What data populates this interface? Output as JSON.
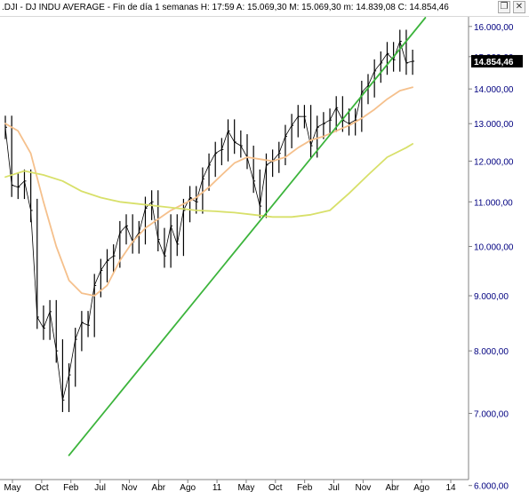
{
  "header": {
    "title": ".DJI - DJ INDU AVERAGE - Fin de día 1 semanas  H: 17:59  A: 15.069,30  M: 15.069,30  m: 14.839,08  C: 14.854,46",
    "restore_icon": "restore-window-icon",
    "close_icon": "close-icon"
  },
  "chart_data": {
    "type": "line",
    "price_style": "bar",
    "x_ticks": [
      "May",
      "Oct",
      "Feb",
      "Jul",
      "Nov",
      "Abr",
      "Ago",
      "11",
      "May",
      "Oct",
      "Feb",
      "Jul",
      "Nov",
      "Abr",
      "Ago",
      "14"
    ],
    "y_scale": "log",
    "y_ticks": [
      "6.000,00",
      "7.000,00",
      "8.000,00",
      "9.000,00",
      "10.000,00",
      "11.000,00",
      "12.000,00",
      "13.000,00",
      "14.000,00",
      "15.000,00",
      "16.000,00"
    ],
    "y_tick_values": [
      6000,
      7000,
      8000,
      9000,
      10000,
      11000,
      12000,
      13000,
      14000,
      15000,
      16000
    ],
    "ylim": [
      6100,
      16300
    ],
    "last_value_label": "14.854,46",
    "last_value": 14854.46,
    "period_range": [
      "2008-05",
      "2013-09"
    ],
    "series": [
      {
        "kind": "price",
        "color": "#000000",
        "points": [
          [
            "2008-05",
            12900
          ],
          [
            "2008-06",
            11400
          ],
          [
            "2008-07",
            11350
          ],
          [
            "2008-08",
            11500
          ],
          [
            "2008-09",
            10800
          ],
          [
            "2008-10",
            8600
          ],
          [
            "2008-11",
            8400
          ],
          [
            "2008-12",
            8700
          ],
          [
            "2009-01",
            8000
          ],
          [
            "2009-02",
            7200
          ],
          [
            "2009-03",
            7600
          ],
          [
            "2009-04",
            8200
          ],
          [
            "2009-05",
            8500
          ],
          [
            "2009-06",
            8450
          ],
          [
            "2009-07",
            9200
          ],
          [
            "2009-08",
            9500
          ],
          [
            "2009-09",
            9700
          ],
          [
            "2009-10",
            9800
          ],
          [
            "2009-11",
            10300
          ],
          [
            "2009-12",
            10450
          ],
          [
            "2010-01",
            10100
          ],
          [
            "2010-02",
            10300
          ],
          [
            "2010-03",
            10850
          ],
          [
            "2010-04",
            11000
          ],
          [
            "2010-05",
            10150
          ],
          [
            "2010-06",
            9800
          ],
          [
            "2010-07",
            10450
          ],
          [
            "2010-08",
            10050
          ],
          [
            "2010-09",
            10800
          ],
          [
            "2010-10",
            11100
          ],
          [
            "2010-11",
            11000
          ],
          [
            "2010-12",
            11550
          ],
          [
            "2011-01",
            11900
          ],
          [
            "2011-02",
            12200
          ],
          [
            "2011-03",
            12300
          ],
          [
            "2011-04",
            12800
          ],
          [
            "2011-05",
            12500
          ],
          [
            "2011-06",
            12400
          ],
          [
            "2011-07",
            12100
          ],
          [
            "2011-08",
            11500
          ],
          [
            "2011-09",
            10900
          ],
          [
            "2011-10",
            11900
          ],
          [
            "2011-11",
            12000
          ],
          [
            "2011-12",
            12200
          ],
          [
            "2012-01",
            12650
          ],
          [
            "2012-02",
            12950
          ],
          [
            "2012-03",
            13200
          ],
          [
            "2012-04",
            13200
          ],
          [
            "2012-05",
            12400
          ],
          [
            "2012-06",
            12900
          ],
          [
            "2012-07",
            13000
          ],
          [
            "2012-08",
            13100
          ],
          [
            "2012-09",
            13450
          ],
          [
            "2012-10",
            13100
          ],
          [
            "2012-11",
            13000
          ],
          [
            "2012-12",
            13100
          ],
          [
            "2013-01",
            13900
          ],
          [
            "2013-02",
            14100
          ],
          [
            "2013-03",
            14550
          ],
          [
            "2013-04",
            14800
          ],
          [
            "2013-05",
            15100
          ],
          [
            "2013-06",
            14900
          ],
          [
            "2013-07",
            15500
          ],
          [
            "2013-08",
            14800
          ],
          [
            "2013-09",
            14854
          ]
        ]
      },
      {
        "kind": "moving_average",
        "color": "#f5c08c",
        "points": [
          [
            "2008-05",
            13000
          ],
          [
            "2008-07",
            12800
          ],
          [
            "2008-09",
            12200
          ],
          [
            "2008-11",
            11000
          ],
          [
            "2009-01",
            10000
          ],
          [
            "2009-03",
            9300
          ],
          [
            "2009-05",
            9050
          ],
          [
            "2009-07",
            9000
          ],
          [
            "2009-09",
            9200
          ],
          [
            "2009-11",
            9700
          ],
          [
            "2010-01",
            10100
          ],
          [
            "2010-03",
            10400
          ],
          [
            "2010-05",
            10600
          ],
          [
            "2010-07",
            10800
          ],
          [
            "2010-09",
            10950
          ],
          [
            "2010-11",
            11100
          ],
          [
            "2011-01",
            11350
          ],
          [
            "2011-03",
            11650
          ],
          [
            "2011-05",
            11950
          ],
          [
            "2011-07",
            12100
          ],
          [
            "2011-09",
            12050
          ],
          [
            "2011-11",
            12000
          ],
          [
            "2012-01",
            12100
          ],
          [
            "2012-03",
            12350
          ],
          [
            "2012-05",
            12550
          ],
          [
            "2012-07",
            12650
          ],
          [
            "2012-09",
            12800
          ],
          [
            "2012-11",
            12950
          ],
          [
            "2013-01",
            13150
          ],
          [
            "2013-03",
            13400
          ],
          [
            "2013-05",
            13700
          ],
          [
            "2013-07",
            13950
          ],
          [
            "2013-09",
            14050
          ]
        ]
      },
      {
        "kind": "moving_average",
        "color": "#d8e06a",
        "points": [
          [
            "2008-05",
            11600
          ],
          [
            "2008-08",
            11750
          ],
          [
            "2008-11",
            11650
          ],
          [
            "2009-02",
            11500
          ],
          [
            "2009-05",
            11250
          ],
          [
            "2009-08",
            11100
          ],
          [
            "2009-11",
            11000
          ],
          [
            "2010-02",
            10950
          ],
          [
            "2010-05",
            10900
          ],
          [
            "2010-08",
            10850
          ],
          [
            "2010-11",
            10800
          ],
          [
            "2011-02",
            10780
          ],
          [
            "2011-05",
            10750
          ],
          [
            "2011-08",
            10700
          ],
          [
            "2011-11",
            10650
          ],
          [
            "2012-02",
            10650
          ],
          [
            "2012-05",
            10700
          ],
          [
            "2012-08",
            10800
          ],
          [
            "2012-11",
            11200
          ],
          [
            "2013-02",
            11650
          ],
          [
            "2013-05",
            12100
          ],
          [
            "2013-08",
            12350
          ],
          [
            "2013-09",
            12450
          ]
        ]
      },
      {
        "kind": "trendline",
        "color": "#3cb43c",
        "points": [
          [
            "2009-03",
            6400
          ],
          [
            "2013-11",
            16300
          ]
        ]
      }
    ]
  }
}
